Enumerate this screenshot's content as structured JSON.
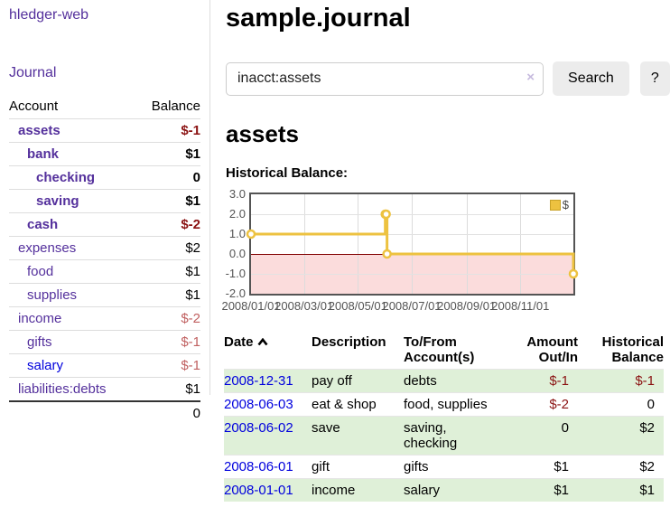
{
  "colors": {
    "accent_purple": "#54309c",
    "link_blue": "#0000dd",
    "negative_dark": "#8b1313",
    "negative_light": "#c06060",
    "row_highlight_green": "#dff0d8",
    "chart_series_yellow": "#edc240",
    "chart_negative_region_pink": "#fbdcdc",
    "chart_zero_line_maroon": "#800000"
  },
  "sidebar": {
    "brand": "hledger-web",
    "journal_link": "Journal",
    "accounts": {
      "col_account": "Account",
      "col_balance": "Balance",
      "rows": [
        {
          "name": "assets",
          "balance": "$-1",
          "indent": 1,
          "bold": true,
          "neg": "dark",
          "link": "purple"
        },
        {
          "name": "bank",
          "balance": "$1",
          "indent": 2,
          "bold": true,
          "neg": "none",
          "link": "purple"
        },
        {
          "name": "checking",
          "balance": "0",
          "indent": 3,
          "bold": true,
          "neg": "none",
          "link": "purple"
        },
        {
          "name": "saving",
          "balance": "$1",
          "indent": 3,
          "bold": true,
          "neg": "none",
          "link": "purple"
        },
        {
          "name": "cash",
          "balance": "$-2",
          "indent": 2,
          "bold": true,
          "neg": "dark",
          "link": "purple"
        },
        {
          "name": "expenses",
          "balance": "$2",
          "indent": 1,
          "bold": false,
          "neg": "none",
          "link": "purple"
        },
        {
          "name": "food",
          "balance": "$1",
          "indent": 2,
          "bold": false,
          "neg": "none",
          "link": "purple"
        },
        {
          "name": "supplies",
          "balance": "$1",
          "indent": 2,
          "bold": false,
          "neg": "none",
          "link": "purple"
        },
        {
          "name": "income",
          "balance": "$-2",
          "indent": 1,
          "bold": false,
          "neg": "light",
          "link": "purple"
        },
        {
          "name": "gifts",
          "balance": "$-1",
          "indent": 2,
          "bold": false,
          "neg": "light",
          "link": "purple"
        },
        {
          "name": "salary",
          "balance": "$-1",
          "indent": 2,
          "bold": false,
          "neg": "light",
          "link": "blue"
        },
        {
          "name": "liabilities:debts",
          "balance": "$1",
          "indent": 1,
          "bold": false,
          "neg": "none",
          "link": "purple"
        }
      ],
      "total": "0"
    }
  },
  "header": {
    "title": "sample.journal"
  },
  "search": {
    "value": "inacct:assets",
    "clear_icon": "×",
    "button_label": "Search",
    "help_label": "?"
  },
  "account_page": {
    "title": "assets",
    "chart_label": "Historical Balance:"
  },
  "chart_data": {
    "type": "line",
    "step": true,
    "title": "Historical Balance:",
    "xlabel": "",
    "ylabel": "",
    "xlim": [
      0,
      365
    ],
    "ylim": [
      -2,
      3
    ],
    "grid": true,
    "series": [
      {
        "name": "$",
        "color": "#edc240",
        "points": [
          {
            "date": "2008-01-01",
            "x": 0,
            "y": 1
          },
          {
            "date": "2008-06-01",
            "x": 152,
            "y": 2
          },
          {
            "date": "2008-06-02",
            "x": 153,
            "y": 2
          },
          {
            "date": "2008-06-03",
            "x": 154,
            "y": 0
          },
          {
            "date": "2008-12-31",
            "x": 365,
            "y": -1
          }
        ]
      }
    ],
    "yticks": [
      {
        "v": 3,
        "label": "3.0"
      },
      {
        "v": 2,
        "label": "2.0"
      },
      {
        "v": 1,
        "label": "1.0"
      },
      {
        "v": 0,
        "label": "0.0"
      },
      {
        "v": -1,
        "label": "-1.0"
      },
      {
        "v": -2,
        "label": "-2.0"
      }
    ],
    "xticks": [
      {
        "v": 0,
        "label": "2008/01/01"
      },
      {
        "v": 60,
        "label": "2008/03/01"
      },
      {
        "v": 121,
        "label": "2008/05/01"
      },
      {
        "v": 182,
        "label": "2008/07/01"
      },
      {
        "v": 244,
        "label": "2008/09/01"
      },
      {
        "v": 305,
        "label": "2008/11/01"
      }
    ],
    "legend": {
      "position": "top-right",
      "items": [
        {
          "label": "$",
          "color": "#edc240"
        }
      ]
    },
    "negative_region_color": "#fbdcdc",
    "zero_line_color": "#800000"
  },
  "register": {
    "columns": {
      "date": "Date",
      "description": "Description",
      "accounts": "To/From\nAccount(s)",
      "amount": "Amount\nOut/In",
      "balance": "Historical\nBalance"
    },
    "rows": [
      {
        "date": "2008-12-31",
        "description": "pay off",
        "accounts": "debts",
        "amount": "$-1",
        "amount_neg": true,
        "balance": "$-1",
        "balance_neg": true
      },
      {
        "date": "2008-06-03",
        "description": "eat & shop",
        "accounts": "food, supplies",
        "amount": "$-2",
        "amount_neg": true,
        "balance": "0",
        "balance_neg": false
      },
      {
        "date": "2008-06-02",
        "description": "save",
        "accounts": "saving,\nchecking",
        "amount": "0",
        "amount_neg": false,
        "balance": "$2",
        "balance_neg": false
      },
      {
        "date": "2008-06-01",
        "description": "gift",
        "accounts": "gifts",
        "amount": "$1",
        "amount_neg": false,
        "balance": "$2",
        "balance_neg": false
      },
      {
        "date": "2008-01-01",
        "description": "income",
        "accounts": "salary",
        "amount": "$1",
        "amount_neg": false,
        "balance": "$1",
        "balance_neg": false
      }
    ]
  }
}
